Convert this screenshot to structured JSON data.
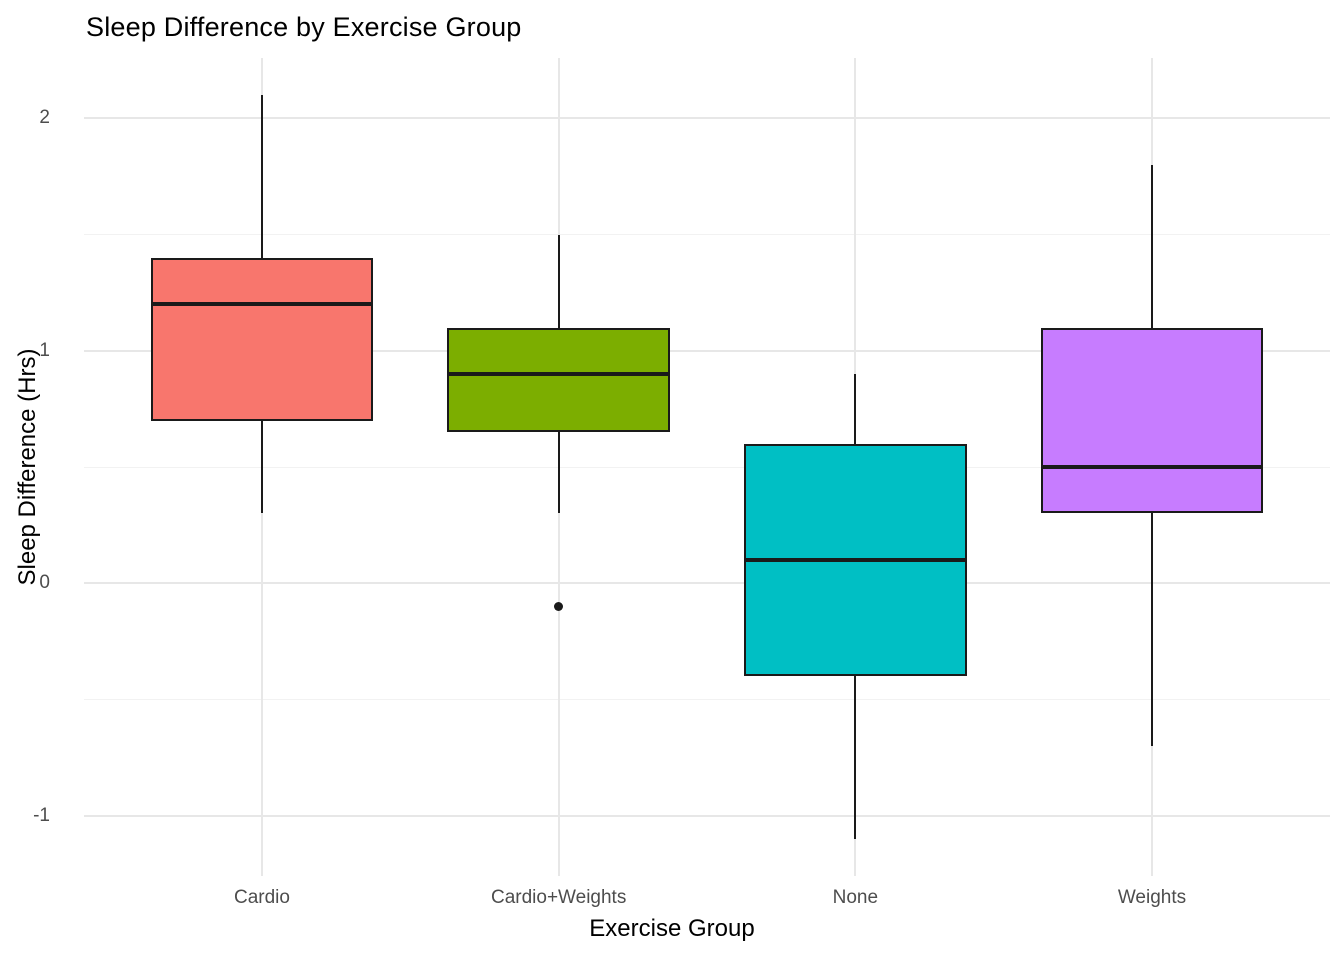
{
  "chart_data": {
    "type": "boxplot",
    "title": "Sleep Difference by Exercise Group",
    "xlabel": "Exercise Group",
    "ylabel": "Sleep Difference (Hrs)",
    "ylim": [
      -1.26,
      2.26
    ],
    "y_major_ticks": [
      -1,
      0,
      1,
      2
    ],
    "y_minor_ticks": [
      -0.5,
      0.5,
      1.5
    ],
    "grid": true,
    "legend": "none",
    "background": "#FFFFFF",
    "box_outline_color": "#1a1a1a",
    "categories": [
      "Cardio",
      "Cardio+Weights",
      "None",
      "Weights"
    ],
    "series": [
      {
        "name": "Cardio",
        "color": "#F8766D",
        "whisker_low": 0.3,
        "q1": 0.7,
        "median": 1.2,
        "q3": 1.4,
        "whisker_high": 2.1,
        "outliers": []
      },
      {
        "name": "Cardio+Weights",
        "color": "#7CAE00",
        "whisker_low": 0.3,
        "q1": 0.65,
        "median": 0.9,
        "q3": 1.1,
        "whisker_high": 1.5,
        "outliers": [
          -0.1
        ]
      },
      {
        "name": "None",
        "color": "#00BFC4",
        "whisker_low": -1.1,
        "q1": -0.4,
        "median": 0.1,
        "q3": 0.6,
        "whisker_high": 0.9,
        "outliers": []
      },
      {
        "name": "Weights",
        "color": "#C77CFF",
        "whisker_low": -0.7,
        "q1": 0.3,
        "median": 0.5,
        "q3": 1.1,
        "whisker_high": 1.8,
        "outliers": []
      }
    ]
  }
}
